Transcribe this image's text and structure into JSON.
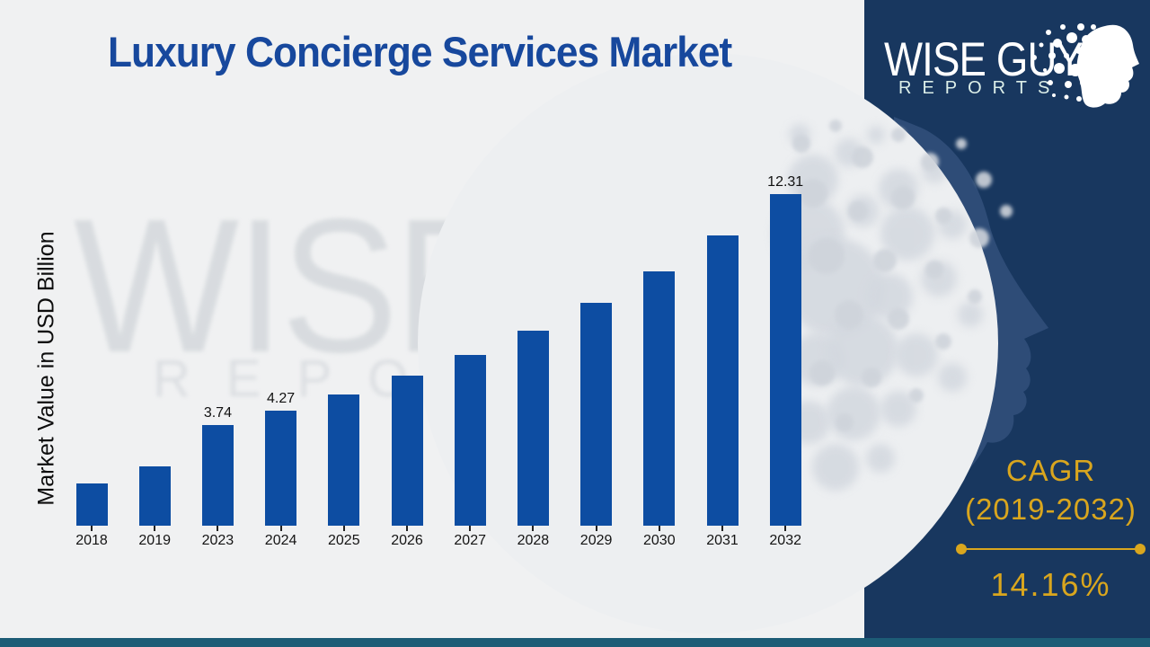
{
  "title": "Luxury Concierge Services Market",
  "watermark": {
    "line1": "WISE GUY",
    "line2": "REPORTS"
  },
  "logo": {
    "line1": "WISE GUY",
    "line2": "REPORTS"
  },
  "cagr": {
    "heading": "CAGR",
    "range": "(2019-2032)",
    "value": "14.16%"
  },
  "colors": {
    "bar": "#0d4da2",
    "title": "#17489d",
    "panel_navy": "#18375f",
    "face_blue": "#2e4c77",
    "gold": "#d9a61e",
    "teal_strip": "#1d5c76",
    "background": "#f0f1f2"
  },
  "chart_data": {
    "type": "bar",
    "title": "Luxury Concierge Services Market",
    "xlabel": "",
    "ylabel": "Market Value in USD Billion",
    "unit": "USD Billion",
    "categories": [
      "2018",
      "2019",
      "2023",
      "2024",
      "2025",
      "2026",
      "2027",
      "2028",
      "2029",
      "2030",
      "2031",
      "2032"
    ],
    "values": [
      1.57,
      2.2,
      3.74,
      4.27,
      4.87,
      5.57,
      6.35,
      7.25,
      8.28,
      9.45,
      10.79,
      12.31
    ],
    "data_labels": {
      "2023": "3.74",
      "2024": "4.27",
      "2032": "12.31"
    },
    "ylim": [
      0,
      13.5
    ],
    "grid": false,
    "legend": false,
    "bar_color": "#0d4da2"
  }
}
